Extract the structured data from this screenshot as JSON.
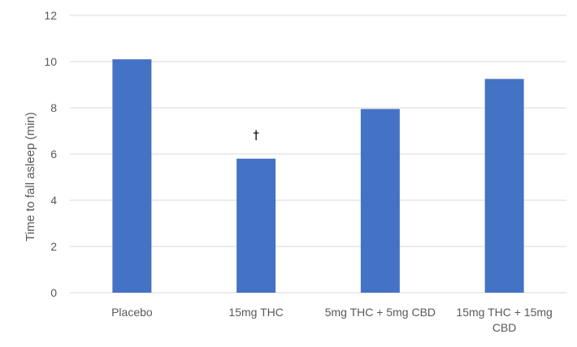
{
  "chart_data": {
    "type": "bar",
    "categories": [
      "Placebo",
      "15mg THC",
      "5mg THC + 5mg CBD",
      "15mg THC + 15mg CBD"
    ],
    "category_lines": [
      [
        "Placebo"
      ],
      [
        "15mg THC"
      ],
      [
        "5mg THC + 5mg CBD"
      ],
      [
        "15mg THC + 15mg",
        "CBD"
      ]
    ],
    "values": [
      10.1,
      5.8,
      7.95,
      9.25
    ],
    "ylabel": "Time to fall asleep (min)",
    "ylim": [
      0,
      12
    ],
    "yticks": [
      0,
      2,
      4,
      6,
      8,
      10,
      12
    ],
    "grid": true,
    "legend": "none",
    "bar_color": "#4472C4",
    "grid_color": "#D9D9D9",
    "annotations": [
      {
        "category": "15mg THC",
        "text": "†"
      }
    ]
  }
}
